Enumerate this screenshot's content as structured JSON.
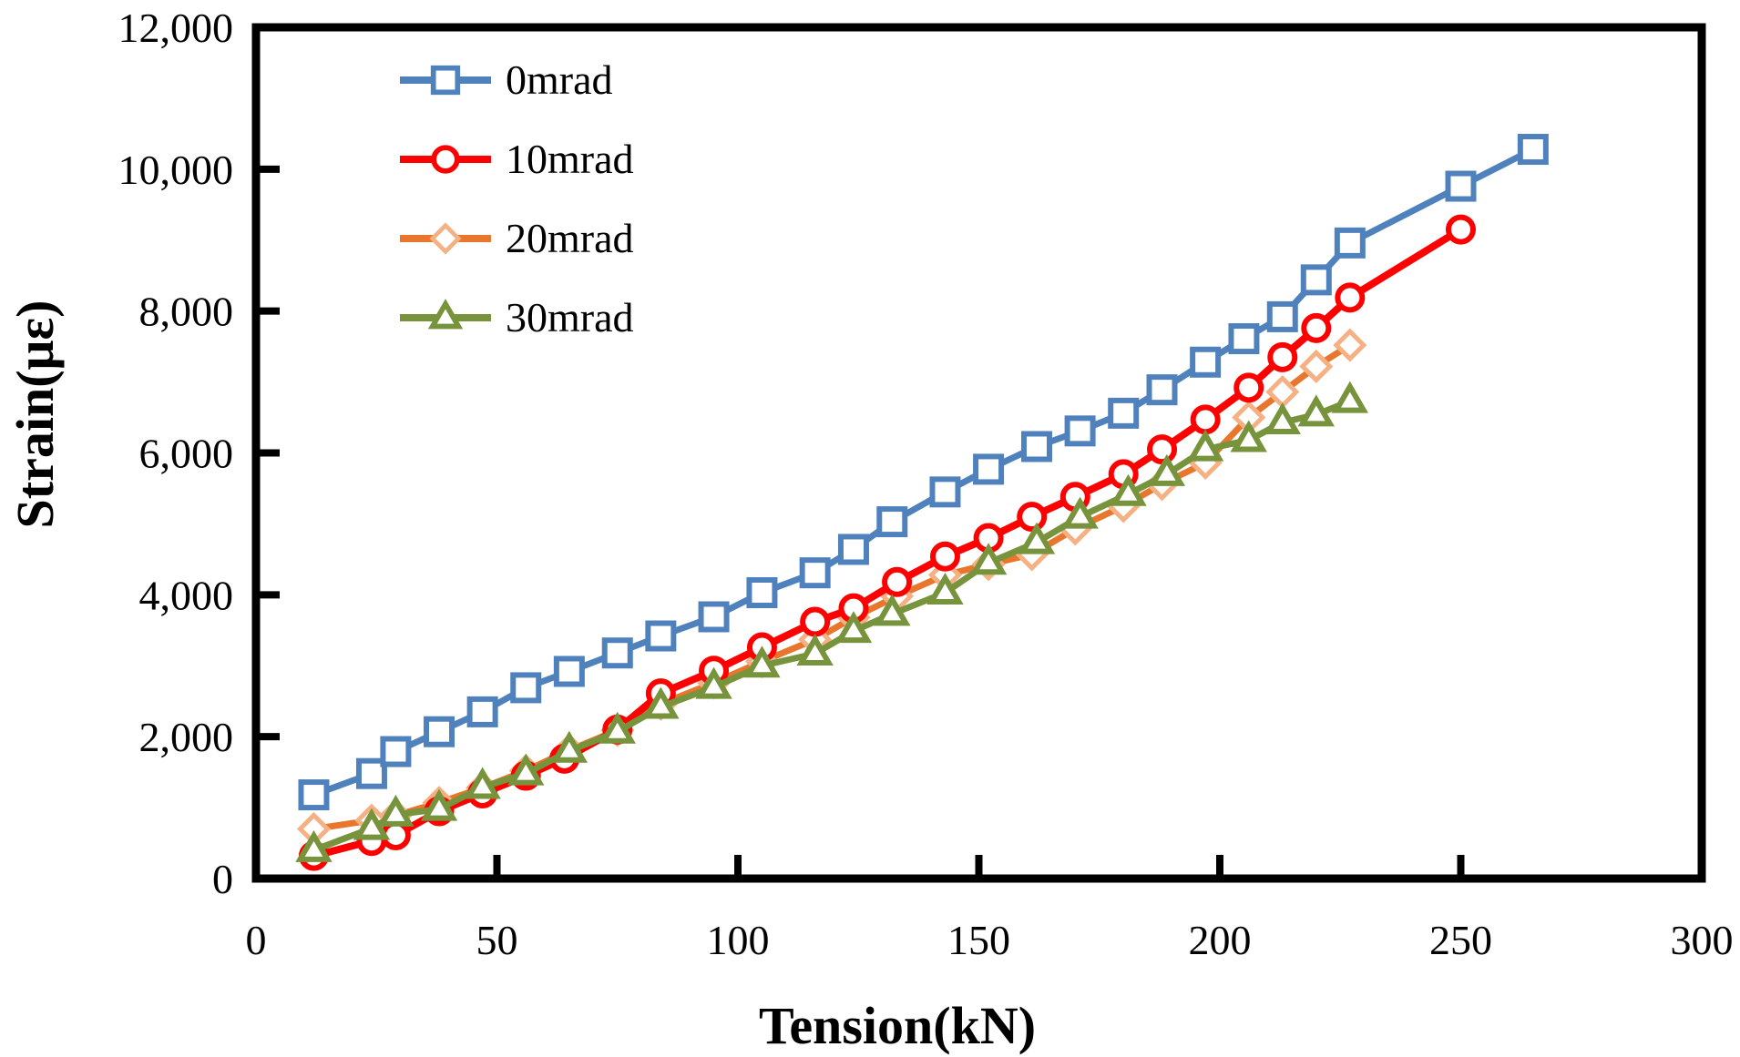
{
  "chart_data": {
    "type": "line",
    "title": "",
    "xlabel": "Tension(kN)",
    "ylabel": "Strain(με)",
    "xlim": [
      0,
      300
    ],
    "ylim": [
      0,
      12000
    ],
    "grid": false,
    "legend_position": "top-left-inside",
    "frame_color": "#000000",
    "xticks": [
      0,
      50,
      100,
      150,
      200,
      250,
      300
    ],
    "xtick_labels": [
      "0",
      "50",
      "100",
      "150",
      "200",
      "250",
      "300"
    ],
    "yticks": [
      0,
      2000,
      4000,
      6000,
      8000,
      10000,
      12000
    ],
    "ytick_labels": [
      "0",
      "2,000",
      "4,000",
      "6,000",
      "8,000",
      "10,000",
      "12,000"
    ],
    "series": [
      {
        "name": "0mrad",
        "color": "#4F81BD",
        "marker": "square",
        "marker_color": "#4F81BD",
        "points": [
          [
            12,
            1180
          ],
          [
            24,
            1480
          ],
          [
            29,
            1790
          ],
          [
            38,
            2070
          ],
          [
            47,
            2350
          ],
          [
            56,
            2690
          ],
          [
            65,
            2920
          ],
          [
            75,
            3180
          ],
          [
            84,
            3420
          ],
          [
            95,
            3690
          ],
          [
            105,
            4030
          ],
          [
            116,
            4310
          ],
          [
            124,
            4640
          ],
          [
            132,
            5030
          ],
          [
            143,
            5450
          ],
          [
            152,
            5770
          ],
          [
            162,
            6090
          ],
          [
            171,
            6310
          ],
          [
            180,
            6560
          ],
          [
            188,
            6890
          ],
          [
            197,
            7280
          ],
          [
            205,
            7610
          ],
          [
            213,
            7920
          ],
          [
            220,
            8440
          ],
          [
            227,
            8960
          ],
          [
            250,
            9760
          ],
          [
            265,
            10280
          ]
        ]
      },
      {
        "name": "10mrad",
        "color": "#FF0000",
        "marker": "circle",
        "marker_color": "#FF0000",
        "points": [
          [
            12,
            320
          ],
          [
            24,
            530
          ],
          [
            29,
            610
          ],
          [
            38,
            950
          ],
          [
            47,
            1200
          ],
          [
            56,
            1450
          ],
          [
            64,
            1690
          ],
          [
            75,
            2100
          ],
          [
            84,
            2610
          ],
          [
            95,
            2930
          ],
          [
            105,
            3260
          ],
          [
            116,
            3620
          ],
          [
            124,
            3810
          ],
          [
            133,
            4180
          ],
          [
            143,
            4540
          ],
          [
            152,
            4800
          ],
          [
            161,
            5100
          ],
          [
            170,
            5380
          ],
          [
            180,
            5700
          ],
          [
            188,
            6050
          ],
          [
            197,
            6470
          ],
          [
            206,
            6920
          ],
          [
            213,
            7350
          ],
          [
            220,
            7760
          ],
          [
            227,
            8190
          ],
          [
            250,
            9150
          ]
        ]
      },
      {
        "name": "20mrad",
        "color": "#E8762C",
        "marker": "diamond",
        "marker_color": "#F5B183",
        "points": [
          [
            12,
            700
          ],
          [
            24,
            820
          ],
          [
            29,
            890
          ],
          [
            38,
            1070
          ],
          [
            47,
            1280
          ],
          [
            56,
            1520
          ],
          [
            65,
            1810
          ],
          [
            75,
            2090
          ],
          [
            84,
            2460
          ],
          [
            95,
            2760
          ],
          [
            105,
            3060
          ],
          [
            116,
            3370
          ],
          [
            124,
            3680
          ],
          [
            133,
            3980
          ],
          [
            143,
            4280
          ],
          [
            152,
            4430
          ],
          [
            161,
            4570
          ],
          [
            170,
            4930
          ],
          [
            180,
            5250
          ],
          [
            188,
            5560
          ],
          [
            197,
            5860
          ],
          [
            206,
            6500
          ],
          [
            213,
            6860
          ],
          [
            220,
            7220
          ],
          [
            227,
            7520
          ]
        ]
      },
      {
        "name": "30mrad",
        "color": "#77933C",
        "marker": "triangle",
        "marker_color": "#77933C",
        "points": [
          [
            12,
            400
          ],
          [
            24,
            710
          ],
          [
            29,
            900
          ],
          [
            38,
            980
          ],
          [
            47,
            1290
          ],
          [
            56,
            1480
          ],
          [
            65,
            1800
          ],
          [
            75,
            2070
          ],
          [
            84,
            2420
          ],
          [
            95,
            2700
          ],
          [
            105,
            3000
          ],
          [
            116,
            3170
          ],
          [
            124,
            3490
          ],
          [
            132,
            3730
          ],
          [
            143,
            4030
          ],
          [
            152,
            4450
          ],
          [
            162,
            4740
          ],
          [
            171,
            5100
          ],
          [
            181,
            5420
          ],
          [
            189,
            5700
          ],
          [
            197,
            6050
          ],
          [
            206,
            6180
          ],
          [
            213,
            6430
          ],
          [
            220,
            6540
          ],
          [
            227,
            6730
          ]
        ]
      }
    ]
  }
}
